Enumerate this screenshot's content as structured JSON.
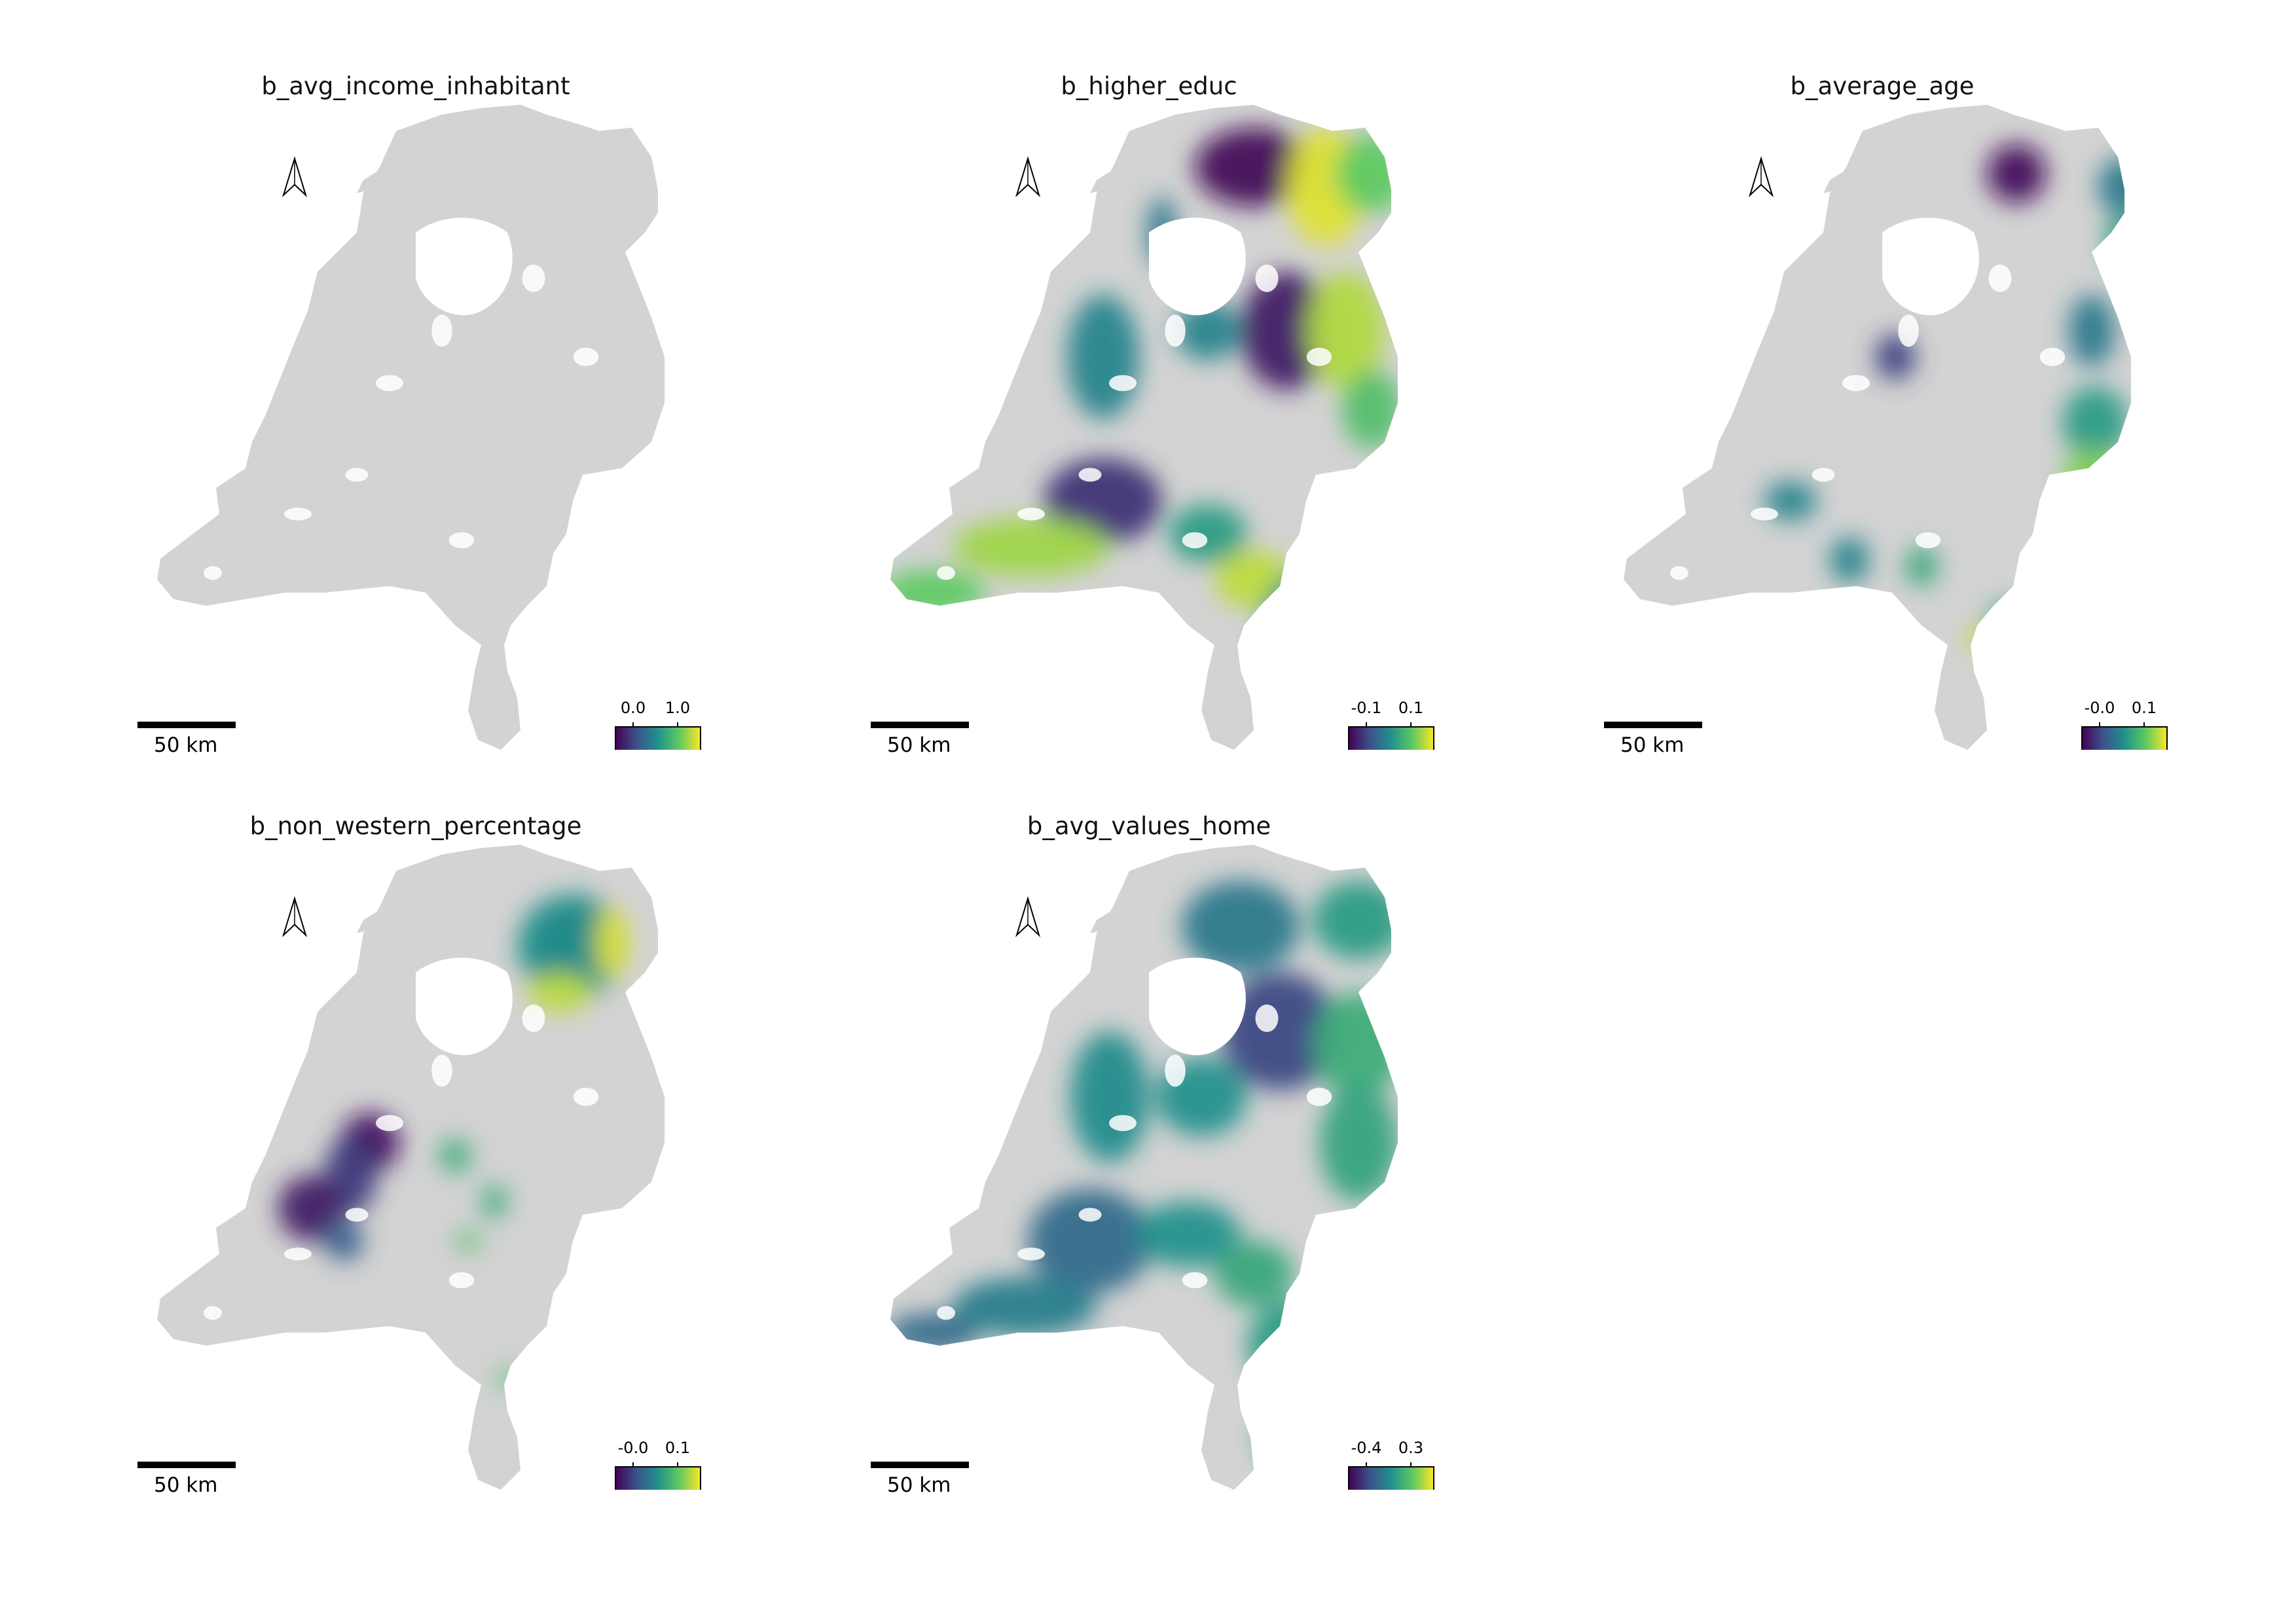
{
  "colormap": [
    "#440154",
    "#3b528b",
    "#21918c",
    "#5ec962",
    "#fde725"
  ],
  "no_data_color": "#d3d3d3",
  "north_arrow_icon": "north-arrow-icon",
  "scale_bar_label": "50 km",
  "panels": [
    {
      "id": "p1",
      "title": "b_avg_income_inhabitant",
      "legend_ticks": [
        "0.0",
        "1.0"
      ],
      "pattern": "none"
    },
    {
      "id": "p2",
      "title": "b_higher_educ",
      "legend_ticks": [
        "-0.1",
        "0.1"
      ],
      "pattern": "educ"
    },
    {
      "id": "p3",
      "title": "b_average_age",
      "legend_ticks": [
        "-0.0",
        "0.1"
      ],
      "pattern": "age"
    },
    {
      "id": "p4",
      "title": "b_non_western_percentage",
      "legend_ticks": [
        "-0.0",
        "0.1"
      ],
      "pattern": "western"
    },
    {
      "id": "p5",
      "title": "b_avg_values_home",
      "legend_ticks": [
        "-0.4",
        "0.3"
      ],
      "pattern": "home"
    }
  ]
}
